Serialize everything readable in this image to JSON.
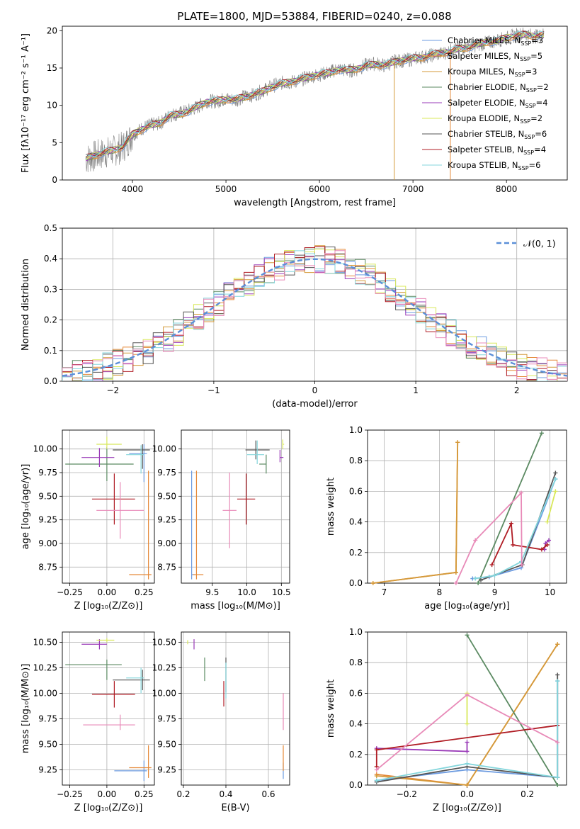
{
  "title": "PLATE=1800, MJD=53884, FIBERID=0240, z=0.088",
  "colors": [
    "#6c9be0",
    "#e58a3a",
    "#d49a3a",
    "#5b8a62",
    "#9a3bb8",
    "#d8e85a",
    "#555555",
    "#b01c24",
    "#84d6dc",
    "#e88ab8"
  ],
  "legend_entries": [
    {
      "text": "Chabrier MILES, N",
      "sub": "SSP",
      "suffix": "=3",
      "color": "#6c9be0"
    },
    {
      "text": "Salpeter MILES, N",
      "sub": "SSP",
      "suffix": "=5",
      "color": "#e58a3a"
    },
    {
      "text": "Kroupa MILES, N",
      "sub": "SSP",
      "suffix": "=3",
      "color": "#d49a3a"
    },
    {
      "text": "Chabrier ELODIE, N",
      "sub": "SSP",
      "suffix": "=2",
      "color": "#5b8a62"
    },
    {
      "text": "Salpeter ELODIE, N",
      "sub": "SSP",
      "suffix": "=4",
      "color": "#9a3bb8"
    },
    {
      "text": "Kroupa ELODIE, N",
      "sub": "SSP",
      "suffix": "=2",
      "color": "#d8e85a"
    },
    {
      "text": "Chabrier STELIB, N",
      "sub": "SSP",
      "suffix": "=6",
      "color": "#555555"
    },
    {
      "text": "Salpeter STELIB, N",
      "sub": "SSP",
      "suffix": "=4",
      "color": "#b01c24"
    },
    {
      "text": "Kroupa STELIB, N",
      "sub": "SSP",
      "suffix": "=6",
      "color": "#84d6dc"
    }
  ],
  "chart_data": [
    {
      "id": "spectrum",
      "type": "line",
      "xlabel": "wavelength [Angstrom, rest frame]",
      "ylabel": "Flux [fλ10⁻¹⁷ erg cm⁻² s⁻¹ A⁻¹]",
      "xlim": [
        3250,
        8650
      ],
      "ylim": [
        0,
        20.6
      ],
      "xticks": [
        4000,
        5000,
        6000,
        7000,
        8000
      ],
      "yticks": [
        0,
        5,
        10,
        15,
        20
      ],
      "data_x": [
        3500,
        3600,
        3700,
        3800,
        3900,
        4000,
        4100,
        4200,
        4300,
        4400,
        4500,
        4600,
        4700,
        4800,
        4900,
        5000,
        5100,
        5200,
        5300,
        5400,
        5500,
        5600,
        5700,
        5800,
        5900,
        6000,
        6100,
        6200,
        6300,
        6400,
        6500,
        6600,
        6700,
        6800,
        6900,
        7000,
        7100,
        7200,
        7300,
        7400,
        7500,
        7600,
        7700,
        7800,
        7900,
        8000,
        8100,
        8200,
        8300,
        8400
      ],
      "data_y": [
        2.8,
        3.2,
        3.6,
        3.9,
        4.4,
        6.0,
        6.9,
        7.4,
        7.6,
        8.7,
        8.9,
        9.3,
        9.8,
        10.6,
        10.5,
        10.9,
        10.7,
        11.2,
        11.4,
        12.0,
        12.6,
        13.0,
        13.1,
        13.4,
        13.9,
        14.1,
        14.4,
        14.9,
        14.6,
        14.8,
        15.4,
        15.6,
        15.3,
        15.9,
        16.0,
        16.2,
        16.5,
        16.7,
        16.9,
        17.3,
        17.7,
        17.9,
        18.1,
        18.4,
        18.7,
        19.0,
        19.4,
        19.6,
        19.2,
        19.5
      ],
      "model_y": [
        2.9,
        3.3,
        3.7,
        4.0,
        4.5,
        6.1,
        6.8,
        7.3,
        7.7,
        8.6,
        8.8,
        9.2,
        9.9,
        10.5,
        10.6,
        10.8,
        10.8,
        11.1,
        11.5,
        11.9,
        12.5,
        12.9,
        13.2,
        13.5,
        13.8,
        14.2,
        14.3,
        14.8,
        14.7,
        14.9,
        15.3,
        15.5,
        15.4,
        15.8,
        16.1,
        16.3,
        16.4,
        16.8,
        17.0,
        17.2,
        17.6,
        17.8,
        18.2,
        18.5,
        18.6,
        19.1,
        19.3,
        19.5,
        19.3,
        19.4
      ],
      "spikes_x": [
        6800,
        7400
      ]
    },
    {
      "id": "residuals",
      "type": "histogram",
      "xlabel": "(data-model)/error",
      "ylabel": "Normed distribution",
      "xlim": [
        -2.5,
        2.5
      ],
      "ylim": [
        0,
        0.5
      ],
      "xticks": [
        -2,
        -1,
        0,
        1,
        2
      ],
      "yticks": [
        0.0,
        0.1,
        0.2,
        0.3,
        0.4,
        0.5
      ],
      "legend": "𝒩(0, 1)",
      "gaussian": {
        "mu": 0,
        "sigma": 1,
        "color": "#5b8fd8"
      }
    },
    {
      "id": "age_vs_Z",
      "type": "errorbar",
      "xlabel": "Z [log₁₀(Z/Z⊙)]",
      "ylabel": "age  [log₁₀(age/yr)]",
      "xlim": [
        -0.3,
        0.32
      ],
      "ylim": [
        8.58,
        10.2
      ],
      "xticks": [
        -0.25,
        0.0,
        0.25
      ],
      "yticks": [
        8.75,
        9.0,
        9.25,
        9.5,
        9.75,
        10.0
      ],
      "points": [
        {
          "x": 0.25,
          "y": 9.95,
          "xerr": [
            0.1,
            0.02
          ],
          "yerr": [
            0.3,
            0.1
          ],
          "color": "#6c9be0"
        },
        {
          "x": 0.28,
          "y": 8.67,
          "xerr": [
            0.13,
            0.02
          ],
          "yerr": [
            0.05,
            1.1
          ],
          "color": "#e58a3a"
        },
        {
          "x": 0.0,
          "y": 9.84,
          "xerr": [
            0.28,
            0.18
          ],
          "yerr": [
            0.18,
            0.18
          ],
          "color": "#5b8a62"
        },
        {
          "x": -0.05,
          "y": 9.91,
          "xerr": [
            0.12,
            0.1
          ],
          "yerr": [
            0.1,
            0.1
          ],
          "color": "#9a3bb8"
        },
        {
          "x": 0.0,
          "y": 10.05,
          "xerr": [
            0.07,
            0.1
          ],
          "yerr": [
            0.05,
            0.08
          ],
          "color": "#d8e85a"
        },
        {
          "x": 0.24,
          "y": 9.99,
          "xerr": [
            0.2,
            0.05
          ],
          "yerr": [
            0.2,
            0.06
          ],
          "color": "#555555"
        },
        {
          "x": 0.05,
          "y": 9.47,
          "xerr": [
            0.15,
            0.14
          ],
          "yerr": [
            0.27,
            0.27
          ],
          "color": "#b01c24"
        },
        {
          "x": 0.23,
          "y": 9.94,
          "xerr": [
            0.1,
            0.02
          ],
          "yerr": [
            0.2,
            0.1
          ],
          "color": "#84d6dc"
        },
        {
          "x": 0.09,
          "y": 9.35,
          "xerr": [
            0.16,
            0.16
          ],
          "yerr": [
            0.3,
            0.3
          ],
          "color": "#e88ab8"
        }
      ]
    },
    {
      "id": "age_vs_mass",
      "type": "errorbar",
      "xlabel": "mass [log₁₀(M/M⊙)]",
      "ylabel": "",
      "xlim": [
        9.05,
        10.62
      ],
      "ylim": [
        8.58,
        10.2
      ],
      "xticks": [
        9.5,
        10.0,
        10.5
      ],
      "yticks": [
        8.75,
        9.0,
        9.25,
        9.5,
        9.75,
        10.0
      ],
      "points": [
        {
          "x": 9.2,
          "y": 8.67,
          "xerr": [
            0.0,
            0.05
          ],
          "yerr": [
            0.05,
            1.1
          ],
          "color": "#6c9be0"
        },
        {
          "x": 9.27,
          "y": 8.67,
          "xerr": [
            0.05,
            0.1
          ],
          "yerr": [
            0.05,
            1.1
          ],
          "color": "#e58a3a"
        },
        {
          "x": 10.28,
          "y": 9.84,
          "xerr": [
            0.1,
            0.0
          ],
          "yerr": [
            0.1,
            0.1
          ],
          "color": "#5b8a62"
        },
        {
          "x": 10.48,
          "y": 9.91,
          "xerr": [
            0.0,
            0.05
          ],
          "yerr": [
            0.05,
            0.08
          ],
          "color": "#9a3bb8"
        },
        {
          "x": 10.52,
          "y": 10.05,
          "xerr": [
            0.0,
            0.02
          ],
          "yerr": [
            0.05,
            0.05
          ],
          "color": "#d8e85a"
        },
        {
          "x": 10.13,
          "y": 9.99,
          "xerr": [
            0.15,
            0.2
          ],
          "yerr": [
            0.1,
            0.1
          ],
          "color": "#555555"
        },
        {
          "x": 9.99,
          "y": 9.47,
          "xerr": [
            0.13,
            0.13
          ],
          "yerr": [
            0.27,
            0.27
          ],
          "color": "#b01c24"
        },
        {
          "x": 10.15,
          "y": 9.94,
          "xerr": [
            0.15,
            0.1
          ],
          "yerr": [
            0.1,
            0.15
          ],
          "color": "#84d6dc"
        },
        {
          "x": 9.75,
          "y": 9.35,
          "xerr": [
            0.1,
            0.1
          ],
          "yerr": [
            0.4,
            0.4
          ],
          "color": "#e88ab8"
        }
      ]
    },
    {
      "id": "weight_vs_age",
      "type": "line",
      "xlabel": "age  [log₁₀(age/yr)]",
      "ylabel": "mass weight",
      "xlim": [
        6.7,
        10.3
      ],
      "ylim": [
        0.0,
        1.0
      ],
      "xticks": [
        7,
        8,
        9,
        10
      ],
      "yticks": [
        0.0,
        0.2,
        0.4,
        0.6,
        0.8,
        1.0
      ],
      "series": [
        {
          "color": "#6c9be0",
          "x": [
            8.6,
            8.9,
            9.48,
            10.1
          ],
          "y": [
            0.03,
            0.04,
            0.1,
            0.68
          ]
        },
        {
          "color": "#e58a3a",
          "x": [
            6.8,
            8.3,
            8.33
          ],
          "y": [
            0.0,
            0.07,
            0.92
          ]
        },
        {
          "color": "#d49a3a",
          "x": [
            6.8,
            8.3,
            8.33
          ],
          "y": [
            0.0,
            0.07,
            0.92
          ]
        },
        {
          "color": "#5b8a62",
          "x": [
            8.7,
            9.85
          ],
          "y": [
            0.0,
            0.98
          ]
        },
        {
          "color": "#9a3bb8",
          "x": [
            9.9,
            9.92,
            9.98
          ],
          "y": [
            0.22,
            0.26,
            0.28
          ]
        },
        {
          "color": "#d8e85a",
          "x": [
            9.95,
            10.1
          ],
          "y": [
            0.4,
            0.6
          ]
        },
        {
          "color": "#555555",
          "x": [
            8.75,
            9.5,
            10.1
          ],
          "y": [
            0.02,
            0.12,
            0.72
          ]
        },
        {
          "color": "#b01c24",
          "x": [
            8.95,
            9.3,
            9.33,
            9.85,
            9.95
          ],
          "y": [
            0.12,
            0.39,
            0.25,
            0.22,
            0.25
          ]
        },
        {
          "color": "#84d6dc",
          "x": [
            8.65,
            9.0,
            9.48,
            10.1
          ],
          "y": [
            0.03,
            0.05,
            0.14,
            0.68
          ]
        },
        {
          "color": "#e88ab8",
          "x": [
            8.3,
            8.65,
            9.48,
            9.49
          ],
          "y": [
            0.0,
            0.28,
            0.59,
            0.12
          ]
        }
      ]
    },
    {
      "id": "mass_vs_Z",
      "type": "errorbar",
      "xlabel": "Z [log₁₀(Z/Z⊙)]",
      "ylabel": "mass [log₁₀(M/M⊙)]",
      "xlim": [
        -0.3,
        0.32
      ],
      "ylim": [
        9.1,
        10.6
      ],
      "xticks": [
        -0.25,
        0.0,
        0.25
      ],
      "yticks": [
        9.25,
        9.5,
        9.75,
        10.0,
        10.25,
        10.5
      ],
      "points": [
        {
          "x": 0.25,
          "y": 9.24,
          "xerr": [
            0.2,
            0.02
          ],
          "yerr": [
            0.1,
            0.1
          ],
          "color": "#6c9be0"
        },
        {
          "x": 0.28,
          "y": 9.27,
          "xerr": [
            0.13,
            0.02
          ],
          "yerr": [
            0.1,
            0.22
          ],
          "color": "#e58a3a"
        },
        {
          "x": 0.0,
          "y": 10.28,
          "xerr": [
            0.28,
            0.1
          ],
          "yerr": [
            0.15,
            0.05
          ],
          "color": "#5b8a62"
        },
        {
          "x": -0.05,
          "y": 10.48,
          "xerr": [
            0.12,
            0.05
          ],
          "yerr": [
            0.05,
            0.05
          ],
          "color": "#9a3bb8"
        },
        {
          "x": 0.0,
          "y": 10.52,
          "xerr": [
            0.07,
            0.05
          ],
          "yerr": [
            0.02,
            0.02
          ],
          "color": "#d8e85a"
        },
        {
          "x": 0.24,
          "y": 10.13,
          "xerr": [
            0.2,
            0.05
          ],
          "yerr": [
            0.1,
            0.1
          ],
          "color": "#555555"
        },
        {
          "x": 0.05,
          "y": 9.99,
          "xerr": [
            0.15,
            0.14
          ],
          "yerr": [
            0.13,
            0.13
          ],
          "color": "#b01c24"
        },
        {
          "x": 0.23,
          "y": 10.15,
          "xerr": [
            0.1,
            0.02
          ],
          "yerr": [
            0.15,
            0.1
          ],
          "color": "#84d6dc"
        },
        {
          "x": 0.09,
          "y": 9.69,
          "xerr": [
            0.25,
            0.1
          ],
          "yerr": [
            0.05,
            0.1
          ],
          "color": "#e88ab8"
        }
      ]
    },
    {
      "id": "mass_vs_ebv",
      "type": "errorbar",
      "xlabel": "E(B-V)",
      "ylabel": "",
      "xlim": [
        0.19,
        0.7
      ],
      "ylim": [
        9.1,
        10.6
      ],
      "xticks": [
        0.2,
        0.4,
        0.6
      ],
      "yticks": [
        9.25,
        9.5,
        9.75,
        10.0,
        10.25,
        10.5
      ],
      "points": [
        {
          "x": 0.67,
          "y": 9.24,
          "xerr": [
            0.0,
            0.0
          ],
          "yerr": [
            0.08,
            0.08
          ],
          "color": "#6c9be0"
        },
        {
          "x": 0.67,
          "y": 9.34,
          "xerr": [
            0.0,
            0.0
          ],
          "yerr": [
            0.1,
            0.15
          ],
          "color": "#e58a3a"
        },
        {
          "x": 0.3,
          "y": 10.25,
          "xerr": [
            0.0,
            0.0
          ],
          "yerr": [
            0.13,
            0.1
          ],
          "color": "#5b8a62"
        },
        {
          "x": 0.25,
          "y": 10.48,
          "xerr": [
            0.0,
            0.0
          ],
          "yerr": [
            0.05,
            0.05
          ],
          "color": "#9a3bb8"
        },
        {
          "x": 0.22,
          "y": 10.5,
          "xerr": [
            0.0,
            0.0
          ],
          "yerr": [
            0.02,
            0.02
          ],
          "color": "#d8e85a"
        },
        {
          "x": 0.4,
          "y": 10.13,
          "xerr": [
            0.0,
            0.0
          ],
          "yerr": [
            0.12,
            0.22
          ],
          "color": "#555555"
        },
        {
          "x": 0.39,
          "y": 10.0,
          "xerr": [
            0.0,
            0.0
          ],
          "yerr": [
            0.13,
            0.12
          ],
          "color": "#b01c24"
        },
        {
          "x": 0.4,
          "y": 10.1,
          "xerr": [
            0.0,
            0.0
          ],
          "yerr": [
            0.15,
            0.2
          ],
          "color": "#84d6dc"
        },
        {
          "x": 0.67,
          "y": 9.82,
          "xerr": [
            0.0,
            0.0
          ],
          "yerr": [
            0.18,
            0.18
          ],
          "color": "#e88ab8"
        }
      ]
    },
    {
      "id": "weight_vs_Z",
      "type": "line",
      "xlabel": "Z [log₁₀(Z/Z⊙)]",
      "ylabel": "mass weight",
      "xlim": [
        -0.33,
        0.33
      ],
      "ylim": [
        0.0,
        1.0
      ],
      "xticks": [
        -0.2,
        0.0,
        0.2
      ],
      "yticks": [
        0.0,
        0.2,
        0.4,
        0.6,
        0.8,
        1.0
      ],
      "series": [
        {
          "color": "#6c9be0",
          "x": [
            -0.3,
            0.0,
            0.3,
            0.3
          ],
          "y": [
            0.03,
            0.1,
            0.05,
            0.68
          ]
        },
        {
          "color": "#e58a3a",
          "x": [
            -0.3,
            0.0,
            0.3
          ],
          "y": [
            0.07,
            0.0,
            0.92
          ]
        },
        {
          "color": "#d49a3a",
          "x": [
            -0.3,
            0.0,
            0.3
          ],
          "y": [
            0.06,
            0.0,
            0.92
          ]
        },
        {
          "color": "#5b8a62",
          "x": [
            0.0,
            0.3
          ],
          "y": [
            0.98,
            0.0
          ]
        },
        {
          "color": "#9a3bb8",
          "x": [
            -0.3,
            0.0,
            0.0
          ],
          "y": [
            0.24,
            0.22,
            0.28
          ]
        },
        {
          "color": "#d8e85a",
          "x": [
            0.0,
            0.0
          ],
          "y": [
            0.4,
            0.6
          ]
        },
        {
          "color": "#555555",
          "x": [
            -0.3,
            0.0,
            0.3,
            0.3
          ],
          "y": [
            0.02,
            0.12,
            0.05,
            0.72
          ]
        },
        {
          "color": "#b01c24",
          "x": [
            -0.3,
            -0.3,
            0.3
          ],
          "y": [
            0.12,
            0.23,
            0.39
          ]
        },
        {
          "color": "#84d6dc",
          "x": [
            -0.3,
            0.0,
            0.3,
            0.3
          ],
          "y": [
            0.03,
            0.14,
            0.05,
            0.68
          ]
        },
        {
          "color": "#e88ab8",
          "x": [
            -0.3,
            0.0,
            0.3
          ],
          "y": [
            0.1,
            0.59,
            0.28
          ]
        }
      ]
    }
  ]
}
